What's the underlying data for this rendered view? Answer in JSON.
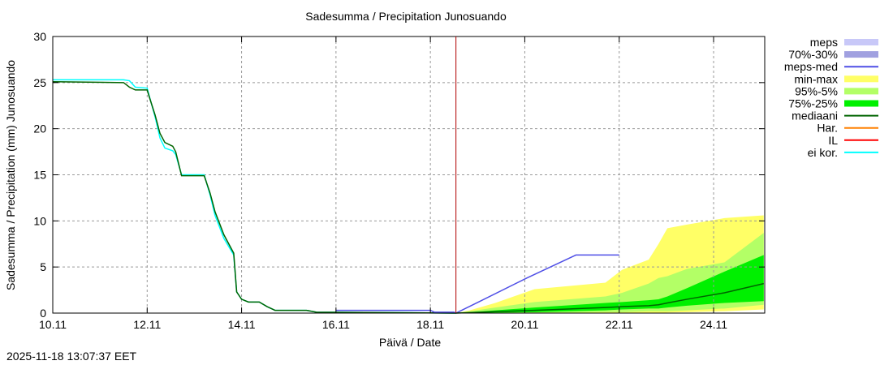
{
  "chart_data": {
    "type": "area",
    "title": "Sadesumma / Precipitation  Junosuando",
    "xlabel": "Päivä / Date",
    "ylabel": "Sadesumma / Precipitation (mm)  Junosuando",
    "ylim": [
      0,
      30
    ],
    "xlim": [
      "2025-11-10T00:00",
      "2025-11-25T02:00"
    ],
    "yticks": [
      0,
      5,
      10,
      15,
      20,
      25,
      30
    ],
    "xticks": [
      {
        "t": "2025-11-10T00:00",
        "label": "10.11"
      },
      {
        "t": "2025-11-12T00:00",
        "label": "12.11"
      },
      {
        "t": "2025-11-14T00:00",
        "label": "14.11"
      },
      {
        "t": "2025-11-16T00:00",
        "label": "16.11"
      },
      {
        "t": "2025-11-18T00:00",
        "label": "18.11"
      },
      {
        "t": "2025-11-20T00:00",
        "label": "20.11"
      },
      {
        "t": "2025-11-22T00:00",
        "label": "22.11"
      },
      {
        "t": "2025-11-24T00:00",
        "label": "24.11"
      }
    ],
    "grid": true,
    "legend_position": "right",
    "now": "2025-11-18T13:00",
    "legend": [
      {
        "name": "meps",
        "kind": "box",
        "color": "#c8c8f8"
      },
      {
        "name": "70%-30%",
        "kind": "box",
        "color": "#a0a0e0"
      },
      {
        "name": "meps-med",
        "kind": "line",
        "color": "#4f4fe6"
      },
      {
        "name": "min-max",
        "kind": "box",
        "color": "#ffff66"
      },
      {
        "name": "95%-5%",
        "kind": "box",
        "color": "#b3ff66"
      },
      {
        "name": "75%-25%",
        "kind": "box",
        "color": "#00f000"
      },
      {
        "name": "mediaani",
        "kind": "line",
        "color": "#006400"
      },
      {
        "name": "Har.",
        "kind": "line",
        "color": "#ff8000"
      },
      {
        "name": "IL",
        "kind": "line",
        "color": "#ff0000"
      },
      {
        "name": "ei kor.",
        "kind": "line",
        "color": "#00ffff"
      }
    ],
    "forecast_times": [
      "2025-11-18T13:00",
      "2025-11-18T20:00",
      "2025-11-19T09:00",
      "2025-11-20T05:00",
      "2025-11-21T17:00",
      "2025-11-22T01:30",
      "2025-11-22T15:00",
      "2025-11-22T20:00",
      "2025-11-23T00:30",
      "2025-11-23T10:30",
      "2025-11-24T05:30",
      "2025-11-25T01:30"
    ],
    "bands": {
      "max": [
        0,
        0.3,
        1.1,
        2.6,
        3.3,
        4.7,
        5.8,
        7.5,
        9.2,
        9.6,
        10.3,
        10.6
      ],
      "p95": [
        0,
        0.2,
        0.6,
        1.2,
        1.8,
        2.2,
        3.2,
        3.8,
        4.0,
        4.8,
        5.5,
        8.7
      ],
      "p75": [
        0,
        0.1,
        0.3,
        0.6,
        1.1,
        1.2,
        1.4,
        1.5,
        1.8,
        2.7,
        4.5,
        6.3
      ],
      "median": [
        0,
        0.05,
        0.15,
        0.3,
        0.6,
        0.7,
        0.8,
        0.9,
        1.1,
        1.5,
        2.2,
        3.2
      ],
      "p25": [
        0,
        0,
        0.05,
        0.1,
        0.3,
        0.4,
        0.5,
        0.5,
        0.6,
        0.8,
        1.1,
        1.3
      ],
      "p5": [
        0,
        0,
        0,
        0,
        0.1,
        0.1,
        0.2,
        0.2,
        0.2,
        0.3,
        0.5,
        0.9
      ],
      "min": [
        0,
        0,
        0,
        0,
        0,
        0,
        0,
        0,
        0.05,
        0.1,
        0.2,
        0.4
      ]
    },
    "series": [
      {
        "name": "ei kor.",
        "color": "#00ffff",
        "points": [
          [
            "2025-11-10T00:00",
            25.3
          ],
          [
            "2025-11-11T12:00",
            25.3
          ],
          [
            "2025-11-11T15:00",
            25.2
          ],
          [
            "2025-11-11T18:00",
            24.5
          ],
          [
            "2025-11-12T00:00",
            24.4
          ],
          [
            "2025-11-12T01:00",
            23.6
          ],
          [
            "2025-11-12T04:00",
            21.3
          ],
          [
            "2025-11-12T06:30",
            19.0
          ],
          [
            "2025-11-12T09:00",
            17.9
          ],
          [
            "2025-11-12T13:00",
            17.6
          ],
          [
            "2025-11-12T14:30",
            17.2
          ],
          [
            "2025-11-12T17:30",
            15.0
          ],
          [
            "2025-11-13T05:00",
            15.0
          ],
          [
            "2025-11-13T08:00",
            12.8
          ],
          [
            "2025-11-13T10:30",
            10.6
          ],
          [
            "2025-11-13T15:00",
            8.1
          ],
          [
            "2025-11-13T20:00",
            6.3
          ],
          [
            "2025-11-13T21:30",
            2.3
          ],
          [
            "2025-11-14T00:00",
            1.5
          ],
          [
            "2025-11-14T03:30",
            1.2
          ],
          [
            "2025-11-14T09:00",
            1.2
          ],
          [
            "2025-11-14T13:00",
            0.7
          ],
          [
            "2025-11-14T17:00",
            0.3
          ],
          [
            "2025-11-15T09:00",
            0.3
          ],
          [
            "2025-11-15T14:00",
            0.1
          ],
          [
            "2025-11-18T13:00",
            0
          ]
        ]
      },
      {
        "name": "mediaani",
        "color": "#006400",
        "points": [
          [
            "2025-11-10T00:00",
            25.1
          ],
          [
            "2025-11-11T12:00",
            25.0
          ],
          [
            "2025-11-11T15:00",
            24.5
          ],
          [
            "2025-11-11T18:00",
            24.2
          ],
          [
            "2025-11-12T00:00",
            24.2
          ],
          [
            "2025-11-12T01:00",
            23.5
          ],
          [
            "2025-11-12T04:00",
            21.5
          ],
          [
            "2025-11-12T06:30",
            19.5
          ],
          [
            "2025-11-12T09:00",
            18.5
          ],
          [
            "2025-11-12T13:00",
            18.1
          ],
          [
            "2025-11-12T14:30",
            17.5
          ],
          [
            "2025-11-12T17:30",
            14.9
          ],
          [
            "2025-11-13T05:00",
            14.9
          ],
          [
            "2025-11-13T08:00",
            13.0
          ],
          [
            "2025-11-13T10:30",
            11.0
          ],
          [
            "2025-11-13T15:00",
            8.5
          ],
          [
            "2025-11-13T20:00",
            6.5
          ],
          [
            "2025-11-13T21:30",
            2.3
          ],
          [
            "2025-11-14T00:00",
            1.5
          ],
          [
            "2025-11-14T03:30",
            1.2
          ],
          [
            "2025-11-14T09:00",
            1.2
          ],
          [
            "2025-11-14T13:00",
            0.7
          ],
          [
            "2025-11-14T17:00",
            0.3
          ],
          [
            "2025-11-15T09:00",
            0.3
          ],
          [
            "2025-11-15T14:00",
            0.1
          ],
          [
            "2025-11-18T13:00",
            0
          ]
        ]
      },
      {
        "name": "meps-med",
        "color": "#4f4fe6",
        "points": [
          [
            "2025-11-16T00:00",
            0.3
          ],
          [
            "2025-11-18T00:00",
            0.3
          ],
          [
            "2025-11-18T02:00",
            0.1
          ],
          [
            "2025-11-18T12:00",
            0.1
          ],
          [
            "2025-11-18T13:00",
            0
          ],
          [
            "2025-11-19T00:30",
            1.2
          ],
          [
            "2025-11-20T01:00",
            3.8
          ],
          [
            "2025-11-21T01:00",
            6.2
          ],
          [
            "2025-11-21T02:00",
            6.3
          ],
          [
            "2025-11-22T00:00",
            6.3
          ]
        ]
      }
    ]
  },
  "footer": {
    "timestamp": "2025-11-18 13:07:37 EET"
  }
}
